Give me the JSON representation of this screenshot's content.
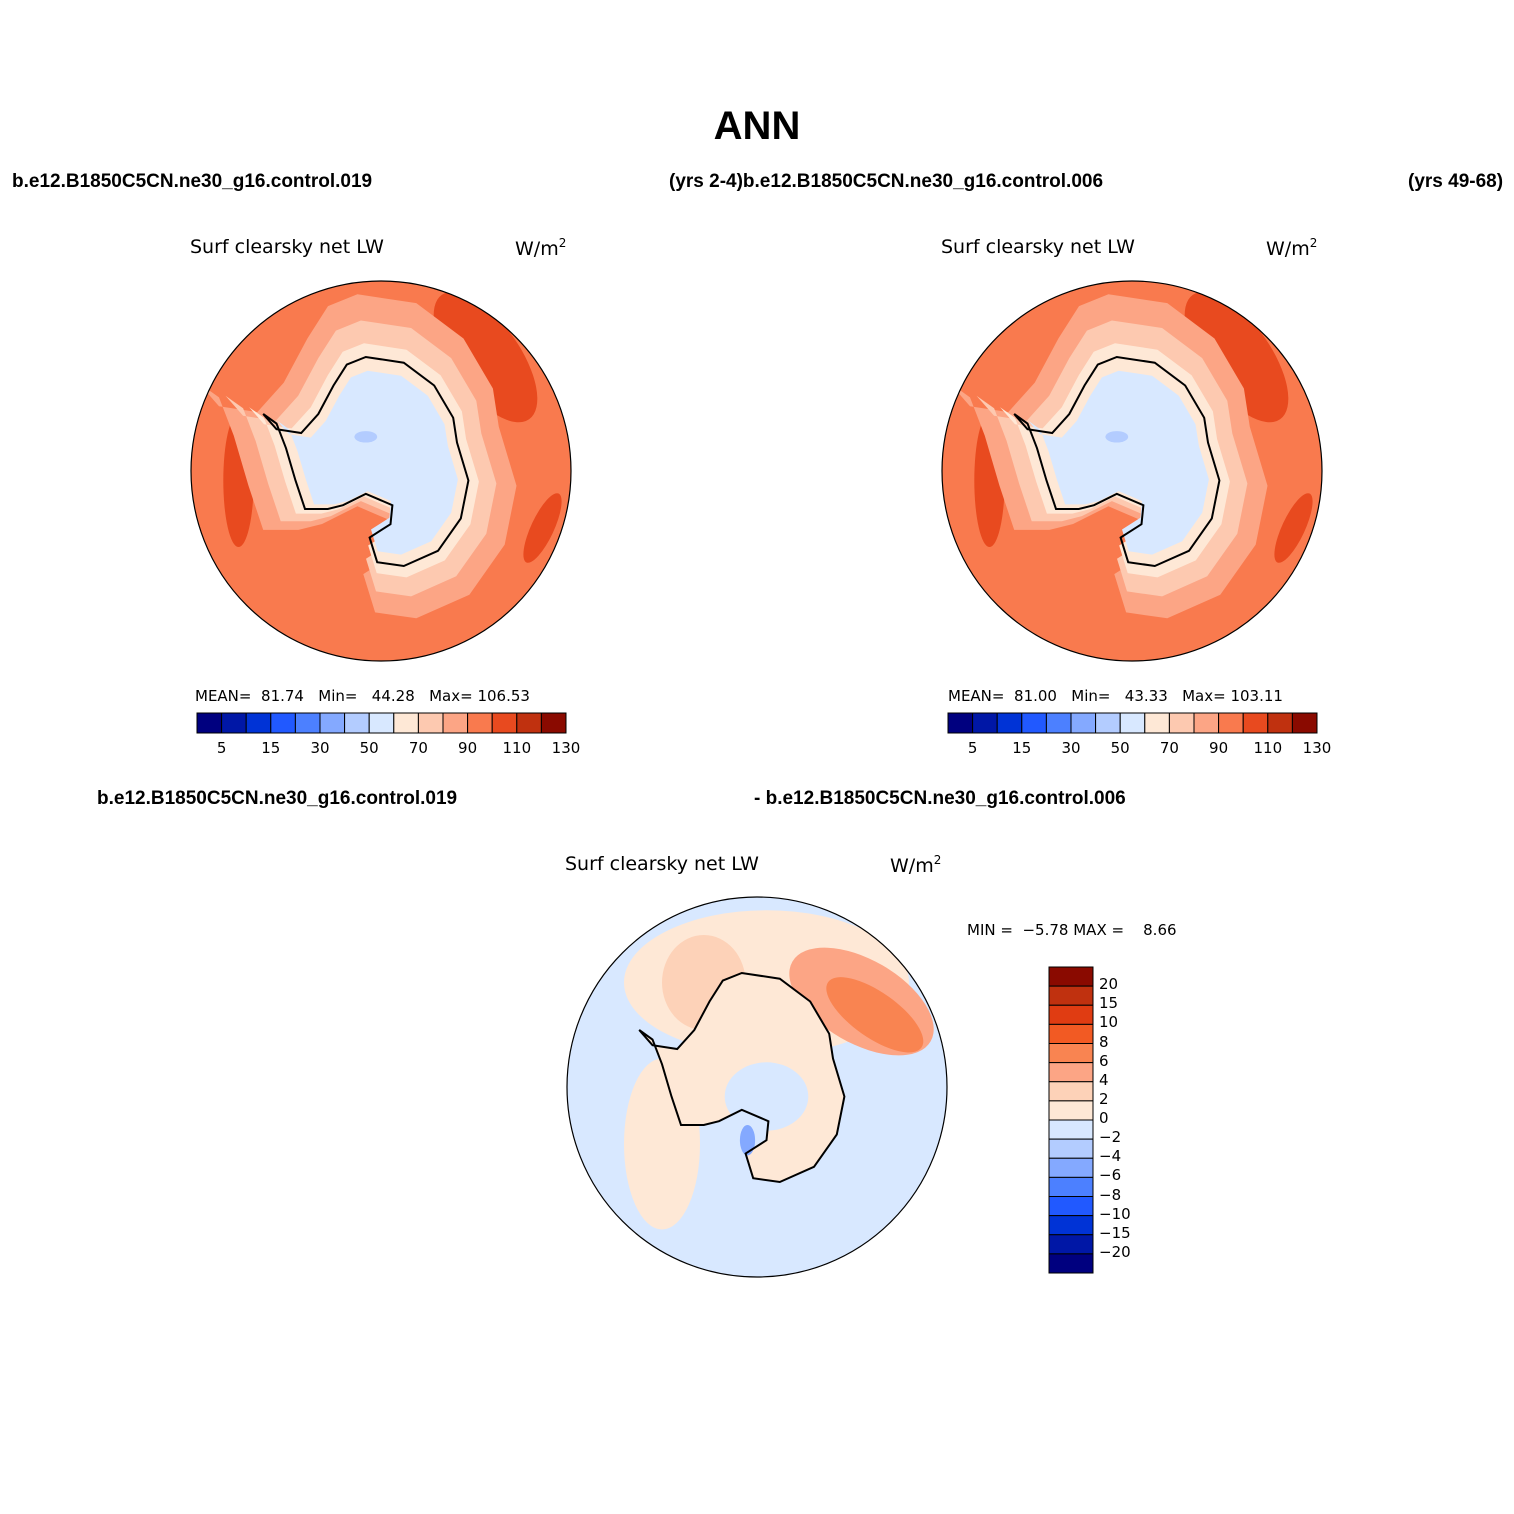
{
  "main_title": "ANN",
  "header": {
    "left_case": "b.e12.B1850C5CN.ne30_g16.control.019",
    "center_text": "(yrs 2-4)b.e12.B1850C5CN.ne30_g16.control.006",
    "right_text": "(yrs 49-68)"
  },
  "diff_header": {
    "left_case": "b.e12.B1850C5CN.ne30_g16.control.019",
    "right_case": "- b.e12.B1850C5CN.ne30_g16.control.006"
  },
  "panels": [
    {
      "title": "Surf clearsky net LW",
      "units": "W/m",
      "units_sup": "2",
      "stats": {
        "mean_label": "MEAN=",
        "mean": "81.74",
        "min_label": "Min=",
        "min": "44.28",
        "max_label": "Max=",
        "max": "106.53"
      }
    },
    {
      "title": "Surf clearsky net LW",
      "units": "W/m",
      "units_sup": "2",
      "stats": {
        "mean_label": "MEAN=",
        "mean": "81.00",
        "min_label": "Min=",
        "min": "43.33",
        "max_label": "Max=",
        "max": "103.11"
      }
    },
    {
      "title": "Surf clearsky net LW",
      "units": "W/m",
      "units_sup": "2",
      "stats": {
        "min_label": "MIN =",
        "min": "−5.78",
        "max_label": "MAX =",
        "max": "8.66"
      }
    }
  ],
  "chart_data": [
    {
      "type": "heatmap",
      "projection": "south-polar stereographic",
      "title": "Surf clearsky net LW",
      "units": "W/m2",
      "colorbar": {
        "orientation": "horizontal",
        "levels": [
          5,
          10,
          15,
          20,
          30,
          40,
          50,
          60,
          70,
          80,
          90,
          100,
          110,
          120,
          130
        ],
        "tick_labels": [
          "5",
          "15",
          "30",
          "50",
          "70",
          "90",
          "110",
          "130"
        ],
        "colors": [
          "#00007f",
          "#0017a6",
          "#0033d6",
          "#2159ff",
          "#4c80ff",
          "#84a9ff",
          "#b3ccff",
          "#d8e8ff",
          "#fee8d6",
          "#fdc9b0",
          "#fca585",
          "#f97a4e",
          "#e84a1f",
          "#c0310f",
          "#8a0a00"
        ]
      },
      "mean": 81.74,
      "min": 44.28,
      "max": 106.53
    },
    {
      "type": "heatmap",
      "projection": "south-polar stereographic",
      "title": "Surf clearsky net LW",
      "units": "W/m2",
      "colorbar": {
        "orientation": "horizontal",
        "levels": [
          5,
          10,
          15,
          20,
          30,
          40,
          50,
          60,
          70,
          80,
          90,
          100,
          110,
          120,
          130
        ],
        "tick_labels": [
          "5",
          "15",
          "30",
          "50",
          "70",
          "90",
          "110",
          "130"
        ],
        "colors": [
          "#00007f",
          "#0017a6",
          "#0033d6",
          "#2159ff",
          "#4c80ff",
          "#84a9ff",
          "#b3ccff",
          "#d8e8ff",
          "#fee8d6",
          "#fdc9b0",
          "#fca585",
          "#f97a4e",
          "#e84a1f",
          "#c0310f",
          "#8a0a00"
        ]
      },
      "mean": 81.0,
      "min": 43.33,
      "max": 103.11
    },
    {
      "type": "heatmap",
      "projection": "south-polar stereographic",
      "title": "Surf clearsky net LW",
      "units": "W/m2",
      "colorbar": {
        "orientation": "vertical",
        "levels": [
          20,
          15,
          10,
          8,
          6,
          4,
          2,
          0,
          -2,
          -4,
          -6,
          -8,
          -10,
          -15,
          -20
        ],
        "tick_labels": [
          "20",
          "15",
          "10",
          "8",
          "6",
          "4",
          "2",
          "0",
          "−2",
          "−4",
          "−6",
          "−8",
          "−10",
          "−15",
          "−20"
        ],
        "colors": [
          "#8a0a00",
          "#c0310f",
          "#e03c12",
          "#f25a23",
          "#f98451",
          "#fca585",
          "#fdd2b8",
          "#fee8d6",
          "#d8e8ff",
          "#b3ccff",
          "#84a9ff",
          "#4c80ff",
          "#2159ff",
          "#0033d6",
          "#0017a6",
          "#00007f"
        ]
      },
      "min": -5.78,
      "max": 8.66
    }
  ]
}
